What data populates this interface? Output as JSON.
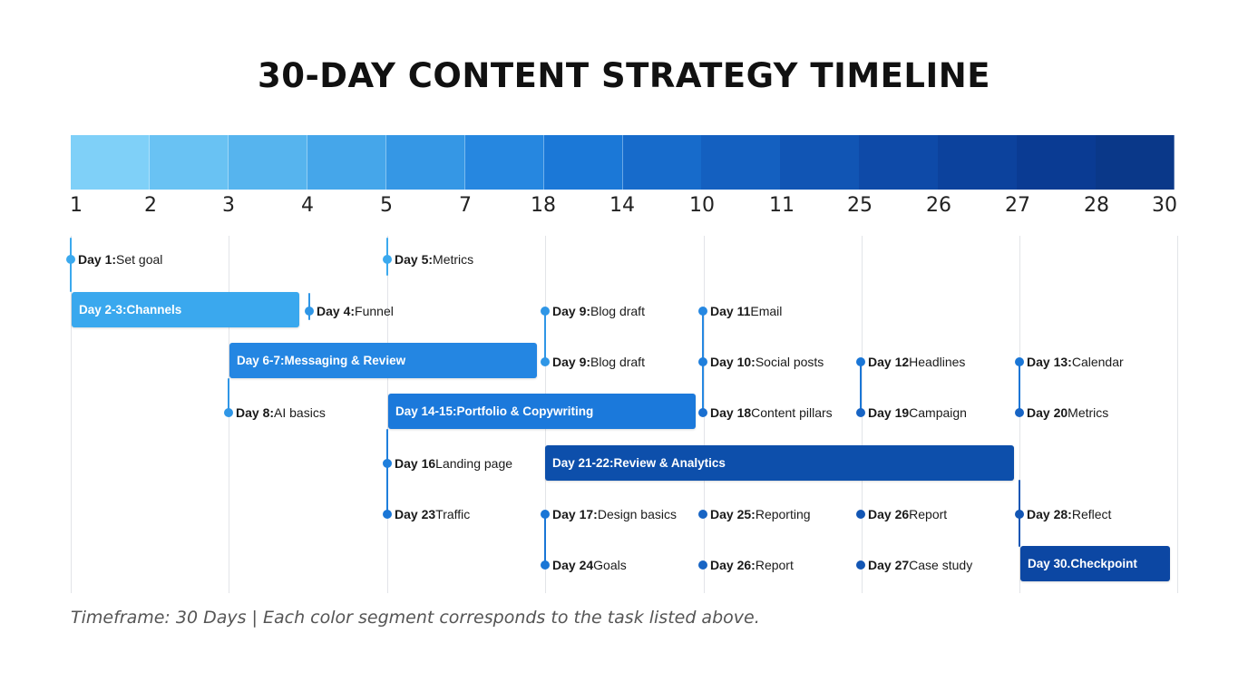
{
  "title": "30-DAY CONTENT STRATEGY TIMELINE",
  "colors": {
    "segments": [
      "#7fd0f8",
      "#69c2f3",
      "#56b4ee",
      "#45a6ea",
      "#3597e5",
      "#2687e0",
      "#1b78d7",
      "#176bcb",
      "#1460c0",
      "#1155b4",
      "#0e4aa8",
      "#0c429d",
      "#0a3b93",
      "#0a3889"
    ],
    "grid": "#e2e4e8"
  },
  "ticks": [
    "1",
    "2",
    "3",
    "4",
    "5",
    "7",
    "18",
    "14",
    "10",
    "11",
    "25",
    "26",
    "27",
    "28",
    "30"
  ],
  "bars": [
    {
      "label": "Day 2-3",
      "sep": ":",
      "desc": "Channels",
      "color": "#3aa8ee"
    },
    {
      "label": "Day 6-7",
      "sep": ":",
      "desc": "Messaging & Review",
      "color": "#2486e2"
    },
    {
      "label": "Day 14-15",
      "sep": ":",
      "desc": "Portfolio & Copywriting",
      "color": "#1b79db"
    },
    {
      "label": "Day 21-22",
      "sep": ":",
      "desc": "Review & Analytics",
      "color": "#0d4fab"
    },
    {
      "label": "Day 30",
      "sep": ".",
      "desc": "Checkpoint",
      "color": "#0c47a3"
    }
  ],
  "tasks": [
    {
      "label": "Day 1",
      "sep": ":",
      "desc": "Set goal",
      "color": "#3ba9ee"
    },
    {
      "label": "Day 5",
      "sep": ":",
      "desc": "Metrics",
      "color": "#3ba9ee"
    },
    {
      "label": "Day 4",
      "sep": ":",
      "desc": "Funnel",
      "color": "#2f96e6"
    },
    {
      "label": "Day 9",
      "sep": ":",
      "desc": "Blog draft",
      "color": "#2f96e6"
    },
    {
      "label": "Day 11",
      "sep": "",
      "desc": "Email",
      "color": "#2688e2"
    },
    {
      "label": "Day 9",
      "sep": ":",
      "desc": "Blog draft",
      "color": "#2f96e6"
    },
    {
      "label": "Day 10",
      "sep": ":",
      "desc": "Social posts",
      "color": "#1f7fdc"
    },
    {
      "label": "Day 12",
      "sep": "",
      "desc": "Headlines",
      "color": "#1a76d6"
    },
    {
      "label": "Day 13",
      "sep": ":",
      "desc": "Calendar",
      "color": "#1a76d6"
    },
    {
      "label": "Day 8",
      "sep": ":",
      "desc": "AI basics",
      "color": "#2f96e6"
    },
    {
      "label": "Day 18",
      "sep": "",
      "desc": "Content pillars",
      "color": "#1a6fd0"
    },
    {
      "label": "Day 19",
      "sep": "",
      "desc": "Campaign",
      "color": "#1764c4"
    },
    {
      "label": "Day 20",
      "sep": "",
      "desc": "Metrics",
      "color": "#1764c4"
    },
    {
      "label": "Day 16",
      "sep": "",
      "desc": "Landing page",
      "color": "#1f7fdc"
    },
    {
      "label": "Day 23",
      "sep": "",
      "desc": "Traffic",
      "color": "#1a76d6"
    },
    {
      "label": "Day 17",
      "sep": ":",
      "desc": "Design basics",
      "color": "#1a76d6"
    },
    {
      "label": "Day 25",
      "sep": ":",
      "desc": "Reporting",
      "color": "#1764c4"
    },
    {
      "label": "Day 26",
      "sep": "",
      "desc": "Report",
      "color": "#1356b4"
    },
    {
      "label": "Day 28",
      "sep": ":",
      "desc": "Reflect",
      "color": "#1356b4"
    },
    {
      "label": "Day 24",
      "sep": "",
      "desc": "Goals",
      "color": "#1a76d6"
    },
    {
      "label": "Day 26",
      "sep": ":",
      "desc": "Report",
      "color": "#1764c4"
    },
    {
      "label": "Day 27",
      "sep": "",
      "desc": "Case study",
      "color": "#1356b4"
    }
  ],
  "footer": "Timeframe: 30 Days | Each color segment corresponds to the task listed above."
}
